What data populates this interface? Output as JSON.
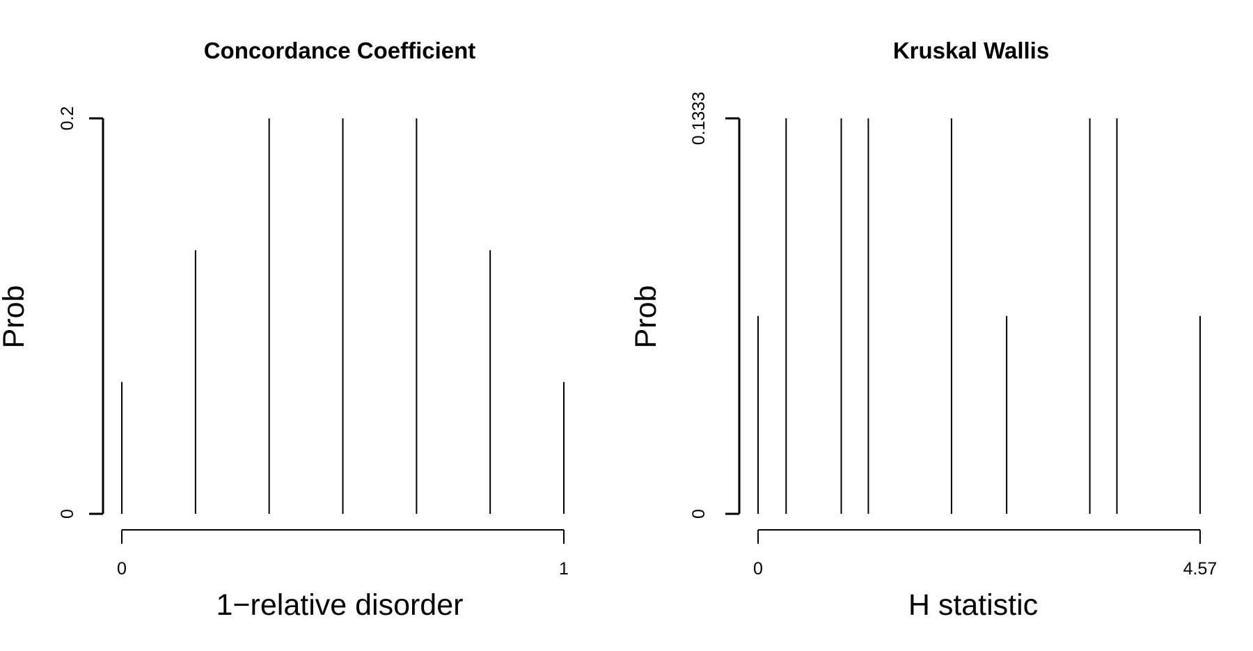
{
  "chart_data": [
    {
      "type": "bar",
      "title": "Concordance Coefficient",
      "xlabel": "1−relative disorder",
      "ylabel": "Prob",
      "x": [
        0,
        0.1667,
        0.3333,
        0.5,
        0.6667,
        0.8333,
        1
      ],
      "values": [
        0.0667,
        0.1333,
        0.2,
        0.2,
        0.2,
        0.1333,
        0.0667
      ],
      "xlim": [
        0,
        1
      ],
      "ylim": [
        0,
        0.2
      ],
      "x_tick_labels": [
        "0",
        "1"
      ],
      "y_tick_labels": [
        "0",
        "0.2"
      ],
      "grid": false,
      "color": "#000000"
    },
    {
      "type": "bar",
      "title": "Kruskal Wallis",
      "xlabel": "H statistic",
      "ylabel": "Prob",
      "x": [
        0,
        0.29,
        0.86,
        1.14,
        2.0,
        2.57,
        3.43,
        3.71,
        4.57
      ],
      "values": [
        0.0667,
        0.1333,
        0.1333,
        0.1333,
        0.1333,
        0.0667,
        0.1333,
        0.1333,
        0.0667
      ],
      "xlim": [
        0,
        4.57
      ],
      "ylim": [
        0,
        0.1333
      ],
      "x_tick_labels": [
        "0",
        "4.57"
      ],
      "y_tick_labels": [
        "0",
        "0.1333"
      ],
      "grid": false,
      "color": "#000000"
    }
  ]
}
